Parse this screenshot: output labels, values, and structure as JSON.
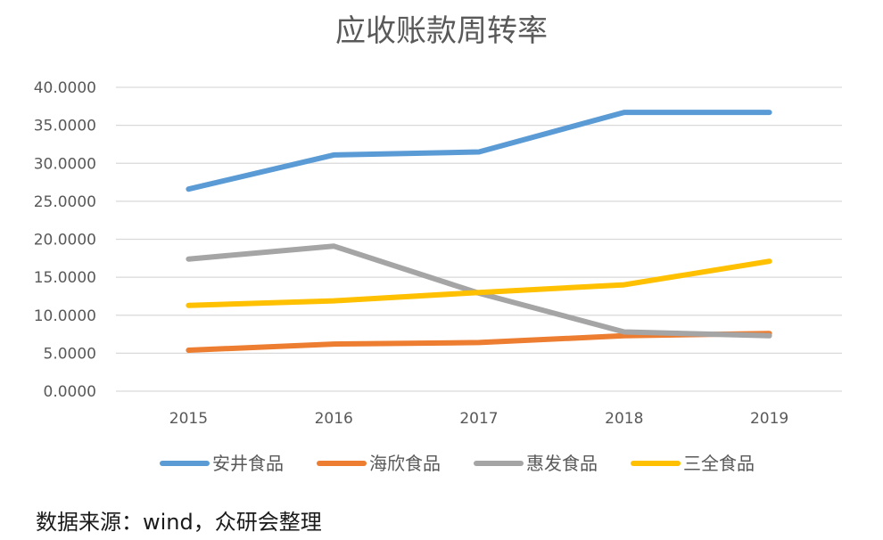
{
  "chart_data": {
    "type": "line",
    "title": "应收账款周转率",
    "x": [
      "2015",
      "2016",
      "2017",
      "2018",
      "2019"
    ],
    "ylim": [
      0,
      40
    ],
    "yticks": [
      "0.0000",
      "5.0000",
      "10.0000",
      "15.0000",
      "20.0000",
      "25.0000",
      "30.0000",
      "35.0000",
      "40.0000"
    ],
    "grid": true,
    "legend_position": "bottom",
    "series": [
      {
        "name": "安井食品",
        "color": "#5B9BD5",
        "values": [
          26.6,
          31.1,
          31.5,
          36.7,
          36.7
        ]
      },
      {
        "name": "海欣食品",
        "color": "#ED7D31",
        "values": [
          5.4,
          6.2,
          6.4,
          7.3,
          7.6
        ]
      },
      {
        "name": "惠发食品",
        "color": "#A5A5A5",
        "values": [
          17.4,
          19.1,
          12.9,
          7.8,
          7.3
        ]
      },
      {
        "name": "三全食品",
        "color": "#FFC000",
        "values": [
          11.3,
          11.9,
          13.0,
          14.0,
          17.1
        ]
      }
    ]
  },
  "source": "数据来源：wind，众研会整理"
}
